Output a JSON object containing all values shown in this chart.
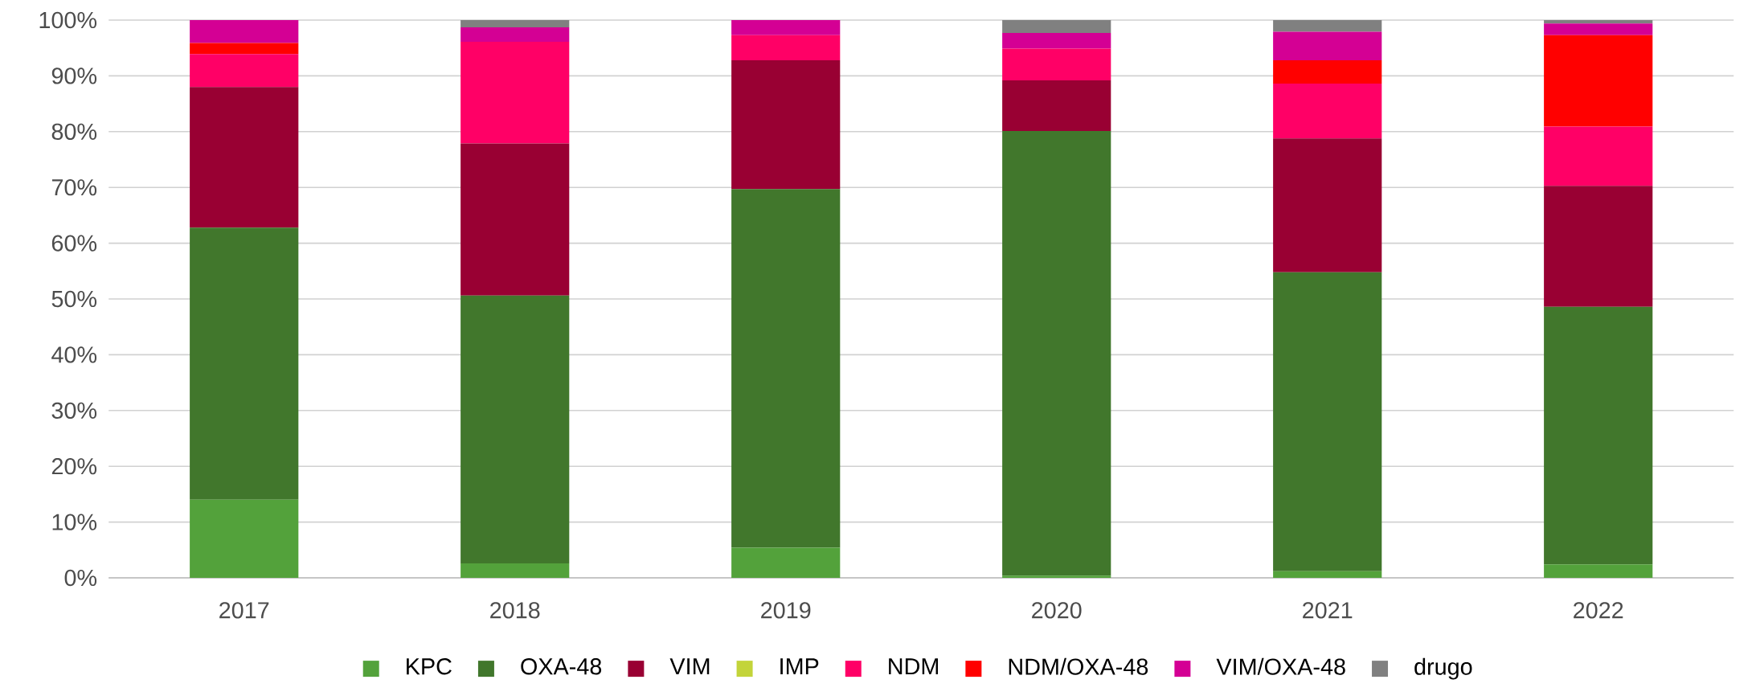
{
  "chart_data": {
    "type": "bar",
    "stacked": true,
    "categories": [
      "2017",
      "2018",
      "2019",
      "2020",
      "2021",
      "2022"
    ],
    "series": [
      {
        "name": "KPC",
        "color": "#53a23b",
        "values": [
          14,
          2.6,
          5.4,
          0.4,
          1.2,
          2.4
        ]
      },
      {
        "name": "OXA-48",
        "color": "#41772c",
        "values": [
          48.8,
          48,
          64.3,
          79.7,
          53.6,
          46.2
        ]
      },
      {
        "name": "VIM",
        "color": "#990033",
        "values": [
          25.2,
          27.3,
          23.1,
          9.1,
          24,
          21.7
        ]
      },
      {
        "name": "IMP",
        "color": "#c3d43a",
        "values": [
          0,
          0,
          0,
          0,
          0,
          0
        ]
      },
      {
        "name": "NDM",
        "color": "#ff0066",
        "values": [
          5.9,
          18.2,
          4.5,
          5.7,
          9.8,
          10.6
        ]
      },
      {
        "name": "NDM/OXA-48",
        "color": "#ff0000",
        "values": [
          2,
          0,
          0,
          0,
          4.2,
          16.4
        ]
      },
      {
        "name": "VIM/OXA-48",
        "color": "#d40094",
        "values": [
          4.1,
          2.6,
          2.7,
          2.8,
          5.1,
          2.1
        ]
      },
      {
        "name": "drugo",
        "color": "#808080",
        "values": [
          0,
          1.3,
          0,
          2.3,
          2.1,
          0.6
        ]
      }
    ],
    "ylim": [
      0,
      100
    ],
    "yticks": [
      {
        "value": 0,
        "label": "0%"
      },
      {
        "value": 10,
        "label": "10%"
      },
      {
        "value": 20,
        "label": "20%"
      },
      {
        "value": 30,
        "label": "30%"
      },
      {
        "value": 40,
        "label": "40%"
      },
      {
        "value": 50,
        "label": "50%"
      },
      {
        "value": 60,
        "label": "60%"
      },
      {
        "value": 70,
        "label": "70%"
      },
      {
        "value": 80,
        "label": "80%"
      },
      {
        "value": 90,
        "label": "90%"
      },
      {
        "value": 100,
        "label": "100%"
      }
    ],
    "grid": "y",
    "legend": "bottom"
  }
}
